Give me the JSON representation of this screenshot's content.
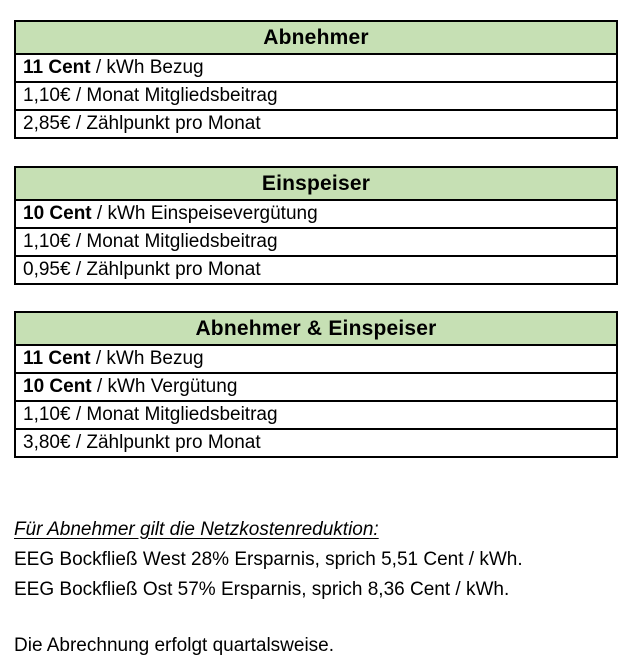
{
  "colors": {
    "header_bg": "#c6e0b4",
    "border": "#000000",
    "text": "#000000",
    "page_bg": "#ffffff"
  },
  "tables": [
    {
      "title": "Abnehmer",
      "rows": [
        {
          "bold": "11 Cent",
          "rest": " / kWh Bezug"
        },
        {
          "bold": "",
          "rest": "1,10€ / Monat Mitgliedsbeitrag"
        },
        {
          "bold": "",
          "rest": "2,85€ / Zählpunkt pro Monat"
        }
      ]
    },
    {
      "title": "Einspeiser",
      "rows": [
        {
          "bold": "10 Cent",
          "rest": " / kWh Einspeisevergütung"
        },
        {
          "bold": "",
          "rest": "1,10€ / Monat Mitgliedsbeitrag"
        },
        {
          "bold": "",
          "rest": "0,95€ / Zählpunkt pro Monat"
        }
      ]
    },
    {
      "title": "Abnehmer & Einspeiser",
      "rows": [
        {
          "bold": "11 Cent",
          "rest": " / kWh Bezug"
        },
        {
          "bold": "10 Cent",
          "rest": " / kWh Vergütung"
        },
        {
          "bold": "",
          "rest": "1,10€ / Monat Mitgliedsbeitrag"
        },
        {
          "bold": "",
          "rest": "3,80€ / Zählpunkt pro Monat"
        }
      ]
    }
  ],
  "notes": {
    "heading": "Für Abnehmer gilt die Netzkostenreduktion:",
    "lines": [
      "EEG Bockfließ West 28% Ersparnis, sprich 5,51 Cent / kWh.",
      "EEG Bockfließ Ost 57% Ersparnis, sprich 8,36 Cent / kWh."
    ],
    "footer": "Die Abrechnung erfolgt quartalsweise."
  }
}
